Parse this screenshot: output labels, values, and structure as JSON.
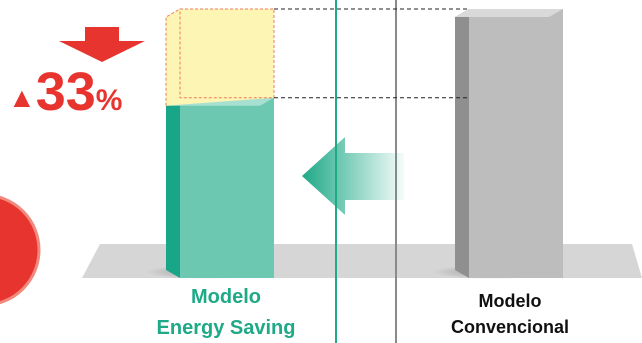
{
  "chart_data": {
    "type": "bar",
    "categories": [
      "Modelo Energy Saving",
      "Modelo Convencional"
    ],
    "category_lines": [
      [
        "Modelo",
        "Energy Saving"
      ],
      [
        "Modelo",
        "Convencional"
      ]
    ],
    "values": [
      67,
      100
    ],
    "reduction": {
      "sign": "▲",
      "number": "33",
      "unit": "%"
    },
    "title": "",
    "xlabel": "",
    "ylabel": "",
    "ylim": [
      0,
      100
    ],
    "grid": false,
    "colors": {
      "energy_saving_bar": "#6cc8b0",
      "energy_saving_side": "#19a688",
      "conventional_bar": "#bdbdbd",
      "conventional_side": "#8f8f8f",
      "reduction_box": "#fdf5b4",
      "reduction_outline": "#f07c5c",
      "accent_red": "#e8342e",
      "energy_label": "#1ea987",
      "conventional_label": "#111111",
      "floor": "#d6d6d6",
      "divider_teal": "#1ea987",
      "divider_gray": "#8a8a8a",
      "arrow": "#1ea987"
    }
  }
}
